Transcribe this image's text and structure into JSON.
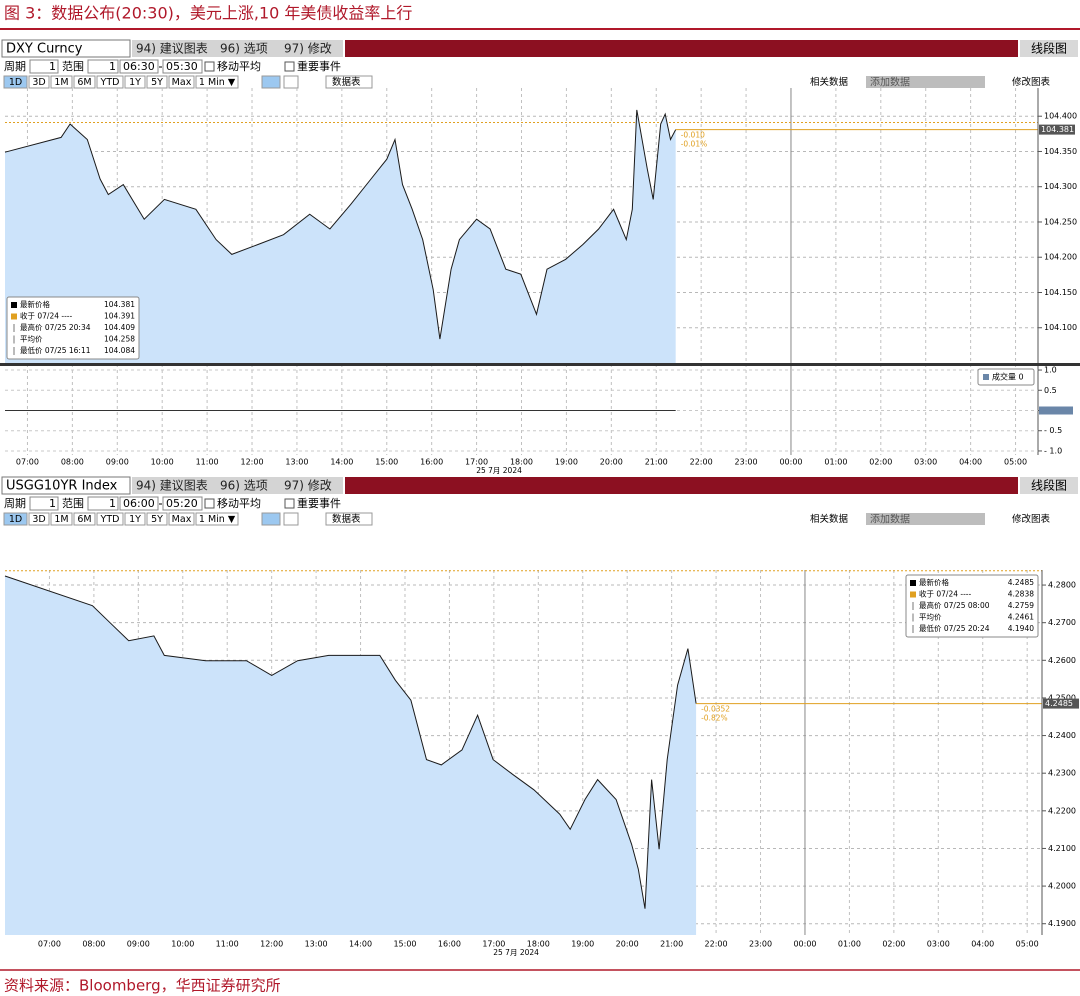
{
  "title": "图 3：数据公布(20:30)，美元上涨,10 年美债收益率上行",
  "source": "资料来源：Bloomberg，华西证券研究所",
  "chart_data": [
    {
      "type": "area",
      "ticker": "DXY Curncy",
      "menus": [
        "94) 建议图表",
        "96) 选项",
        "97) 修改"
      ],
      "chart_style": "线段图",
      "period_label": "周期",
      "period": "1",
      "range_label": "范围",
      "range": "1",
      "range_start": "06:30",
      "range_end": "05:30",
      "options": [
        "移动平均",
        "重要事件"
      ],
      "buttons": [
        "1D",
        "3D",
        "1M",
        "6M",
        "YTD",
        "1Y",
        "5Y",
        "Max",
        "1 Min ▼"
      ],
      "table_button": "数据表",
      "related": "相关数据",
      "add_data": "添加数据",
      "edit_chart": "修改图表",
      "x": [
        "06:30",
        "07:45",
        "07:57",
        "08:02",
        "08:20",
        "08:37",
        "08:48",
        "09:08",
        "09:36",
        "10:03",
        "10:45",
        "11:12",
        "11:33",
        "12:08",
        "12:42",
        "13:17",
        "13:44",
        "14:12",
        "14:39",
        "15:00",
        "15:11",
        "15:21",
        "15:34",
        "15:48",
        "16:02",
        "16:11",
        "16:26",
        "16:37",
        "17:00",
        "17:18",
        "17:39",
        "17:59",
        "18:20",
        "18:34",
        "18:59",
        "19:22",
        "19:43",
        "20:03",
        "20:20",
        "20:28",
        "20:34",
        "20:48",
        "20:56",
        "21:06",
        "21:12",
        "21:19",
        "21:26"
      ],
      "values": [
        104.349,
        104.37,
        104.389,
        104.384,
        104.367,
        104.311,
        104.289,
        104.303,
        104.254,
        104.282,
        104.268,
        104.225,
        104.204,
        104.218,
        104.232,
        104.261,
        104.24,
        104.275,
        104.311,
        104.339,
        104.367,
        104.303,
        104.268,
        104.225,
        104.154,
        104.084,
        104.183,
        104.225,
        104.254,
        104.24,
        104.183,
        104.176,
        104.119,
        104.183,
        104.197,
        104.218,
        104.24,
        104.268,
        104.225,
        104.268,
        104.409,
        104.325,
        104.282,
        104.389,
        104.403,
        104.367,
        104.381
      ],
      "color": "#1a1a1a",
      "fill": "#cce3fa",
      "xlim": [
        "06:30",
        "05:30"
      ],
      "xticks": [
        "07:00",
        "08:00",
        "09:00",
        "10:00",
        "11:00",
        "12:00",
        "13:00",
        "14:00",
        "15:00",
        "16:00",
        "17:00",
        "18:00",
        "19:00",
        "20:00",
        "21:00",
        "22:00",
        "23:00",
        "00:00",
        "01:00",
        "02:00",
        "03:00",
        "04:00",
        "05:00"
      ],
      "x_date": "25 7月 2024",
      "ylim": [
        104.05,
        104.44
      ],
      "yticks": [
        {
          "value": 104.4,
          "label": "104.400"
        },
        {
          "value": 104.35,
          "label": "104.350"
        },
        {
          "value": 104.3,
          "label": "104.300"
        },
        {
          "value": 104.25,
          "label": "104.250"
        },
        {
          "value": 104.2,
          "label": "104.200"
        },
        {
          "value": 104.15,
          "label": "104.150"
        },
        {
          "value": 104.1,
          "label": "104.100"
        }
      ],
      "grid": true,
      "close": 104.391,
      "last_price": 104.381,
      "change_labels": [
        "-0.010",
        "-0.01%"
      ],
      "ref_color": "#e0a020",
      "legend": "lower left",
      "stats": [
        [
          "最新价格",
          "104.381"
        ],
        [
          "收于 07/24 ----",
          "104.391"
        ],
        [
          "最高价 07/25 20:34",
          "104.409"
        ],
        [
          "平均价",
          "104.258"
        ],
        [
          "最低价 07/25 16:11",
          "104.084"
        ]
      ],
      "volume": {
        "label": "成交量 0",
        "ylim": [
          -1.1,
          1.1
        ],
        "yticks": [
          {
            "value": 1,
            "label": "1.0"
          },
          0.5,
          0,
          {
            "value": -0.5,
            "label": "- 0.5"
          },
          {
            "value": -1,
            "label": "- 1.0"
          }
        ]
      }
    },
    {
      "type": "area",
      "ticker": "USGG10YR Index",
      "menus": [
        "94) 建议图表",
        "96) 选项",
        "97) 修改"
      ],
      "chart_style": "线段图",
      "period_label": "周期",
      "period": "1",
      "range_label": "范围",
      "range": "1",
      "range_start": "06:00",
      "range_end": "05:20",
      "options": [
        "移动平均",
        "重要事件"
      ],
      "buttons": [
        "1D",
        "3D",
        "1M",
        "6M",
        "YTD",
        "1Y",
        "5Y",
        "Max",
        "1 Min ▼"
      ],
      "table_button": "数据表",
      "related": "相关数据",
      "add_data": "添加数据",
      "edit_chart": "修改图表",
      "x": [
        "06:00",
        "07:58",
        "08:26",
        "08:47",
        "09:21",
        "09:35",
        "10:31",
        "11:26",
        "12:00",
        "12:35",
        "13:17",
        "14:26",
        "14:47",
        "15:08",
        "15:29",
        "15:49",
        "16:17",
        "16:38",
        "16:59",
        "17:26",
        "17:54",
        "18:29",
        "18:43",
        "19:03",
        "19:20",
        "19:45",
        "20:06",
        "20:15",
        "20:24",
        "20:33",
        "20:43",
        "20:54",
        "21:08",
        "21:22",
        "21:33"
      ],
      "values": [
        4.2824,
        4.2745,
        4.2692,
        4.2652,
        4.2665,
        4.2613,
        4.2599,
        4.2599,
        4.256,
        4.2599,
        4.2613,
        4.2613,
        4.2547,
        4.2494,
        4.2336,
        4.2322,
        4.2362,
        4.2454,
        4.2336,
        4.2296,
        4.2256,
        4.2191,
        4.2151,
        4.223,
        4.2283,
        4.223,
        4.2111,
        4.2045,
        4.194,
        4.2283,
        4.2098,
        4.2336,
        4.2534,
        4.2631,
        4.2485
      ],
      "color": "#1a1a1a",
      "fill": "#cce3fa",
      "xlim": [
        "06:00",
        "05:20"
      ],
      "xticks": [
        "07:00",
        "08:00",
        "09:00",
        "10:00",
        "11:00",
        "12:00",
        "13:00",
        "14:00",
        "15:00",
        "16:00",
        "17:00",
        "18:00",
        "19:00",
        "20:00",
        "21:00",
        "22:00",
        "23:00",
        "00:00",
        "01:00",
        "02:00",
        "03:00",
        "04:00",
        "05:00"
      ],
      "x_date": "25 7月 2024",
      "ylim": [
        4.187,
        4.284
      ],
      "yticks": [
        {
          "value": 4.28,
          "label": "4.2800"
        },
        {
          "value": 4.27,
          "label": "4.2700"
        },
        {
          "value": 4.26,
          "label": "4.2600"
        },
        {
          "value": 4.25,
          "label": "4.2500"
        },
        {
          "value": 4.24,
          "label": "4.2400"
        },
        {
          "value": 4.23,
          "label": "4.2300"
        },
        {
          "value": 4.22,
          "label": "4.2200"
        },
        {
          "value": 4.21,
          "label": "4.2100"
        },
        {
          "value": 4.2,
          "label": "4.2000"
        },
        {
          "value": 4.19,
          "label": "4.1900"
        }
      ],
      "grid": true,
      "close": 4.2838,
      "last_price": 4.2485,
      "change_labels": [
        "-0.0352",
        "-0.82%"
      ],
      "ref_color": "#e0a020",
      "legend": "upper right",
      "stats": [
        [
          "最新价格",
          "4.2485"
        ],
        [
          "收于 07/24 ----",
          "4.2838"
        ],
        [
          "最高价 07/25 08:00",
          "4.2759"
        ],
        [
          "平均价",
          "4.2461"
        ],
        [
          "最低价 07/25 20:24",
          "4.1940"
        ]
      ]
    }
  ]
}
